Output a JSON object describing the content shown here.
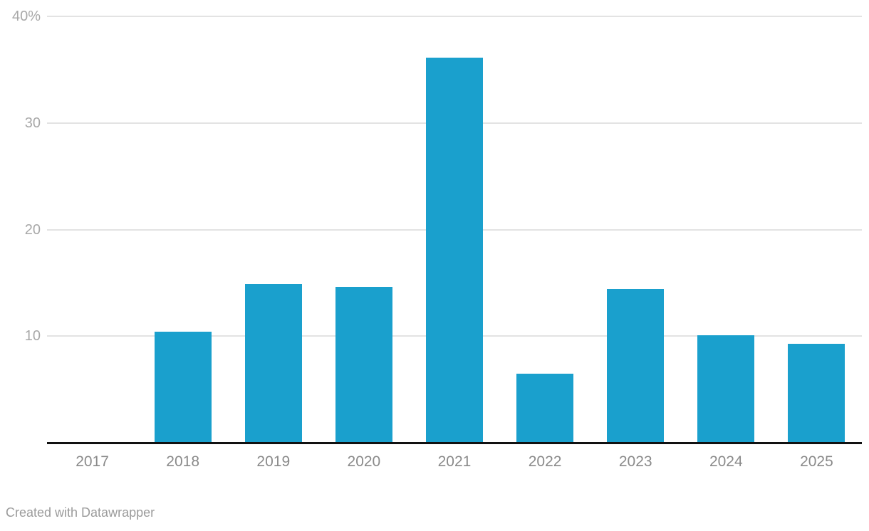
{
  "chart_data": {
    "type": "bar",
    "categories": [
      "2017",
      "2018",
      "2019",
      "2020",
      "2021",
      "2022",
      "2023",
      "2024",
      "2025"
    ],
    "values": [
      0,
      10.4,
      14.9,
      14.6,
      36.1,
      6.5,
      14.4,
      10.1,
      9.3
    ],
    "title": "",
    "xlabel": "",
    "ylabel": "",
    "ylim": [
      0,
      40
    ],
    "yticks": [
      {
        "value": 40,
        "label": "40%"
      },
      {
        "value": 30,
        "label": "30"
      },
      {
        "value": 20,
        "label": "20"
      },
      {
        "value": 10,
        "label": "10"
      }
    ],
    "grid": true,
    "legend": "none",
    "bar_color": "#1aa0cd"
  },
  "colors": {
    "bar": "#1aa0cd",
    "grid": "#e3e3e3",
    "axis": "#111111",
    "y_tick_label": "#a8a8a8",
    "x_tick_label": "#8a8a8a",
    "footer": "#9b9b9b",
    "background": "#ffffff"
  },
  "footer": {
    "credit": "Created with Datawrapper"
  }
}
